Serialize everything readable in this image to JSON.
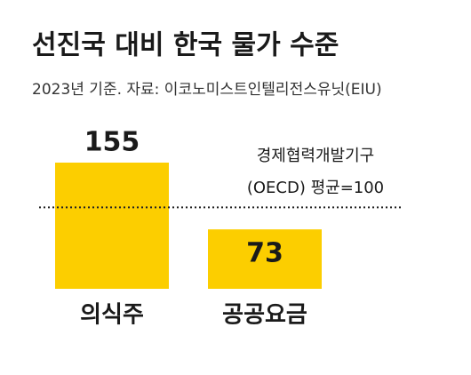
{
  "chart_data": {
    "type": "bar",
    "title": "선진국 대비 한국 물가 수준",
    "subtitle": "2023년 기준. 자료: 이코노미스트인텔리전스유닛(EIU)",
    "categories": [
      "의식주",
      "공공요금"
    ],
    "values": [
      155,
      73
    ],
    "color": "#fcce00",
    "reference_line": 100,
    "annotation": [
      "경제협력개발기구",
      "(OECD) 평균=100"
    ]
  }
}
